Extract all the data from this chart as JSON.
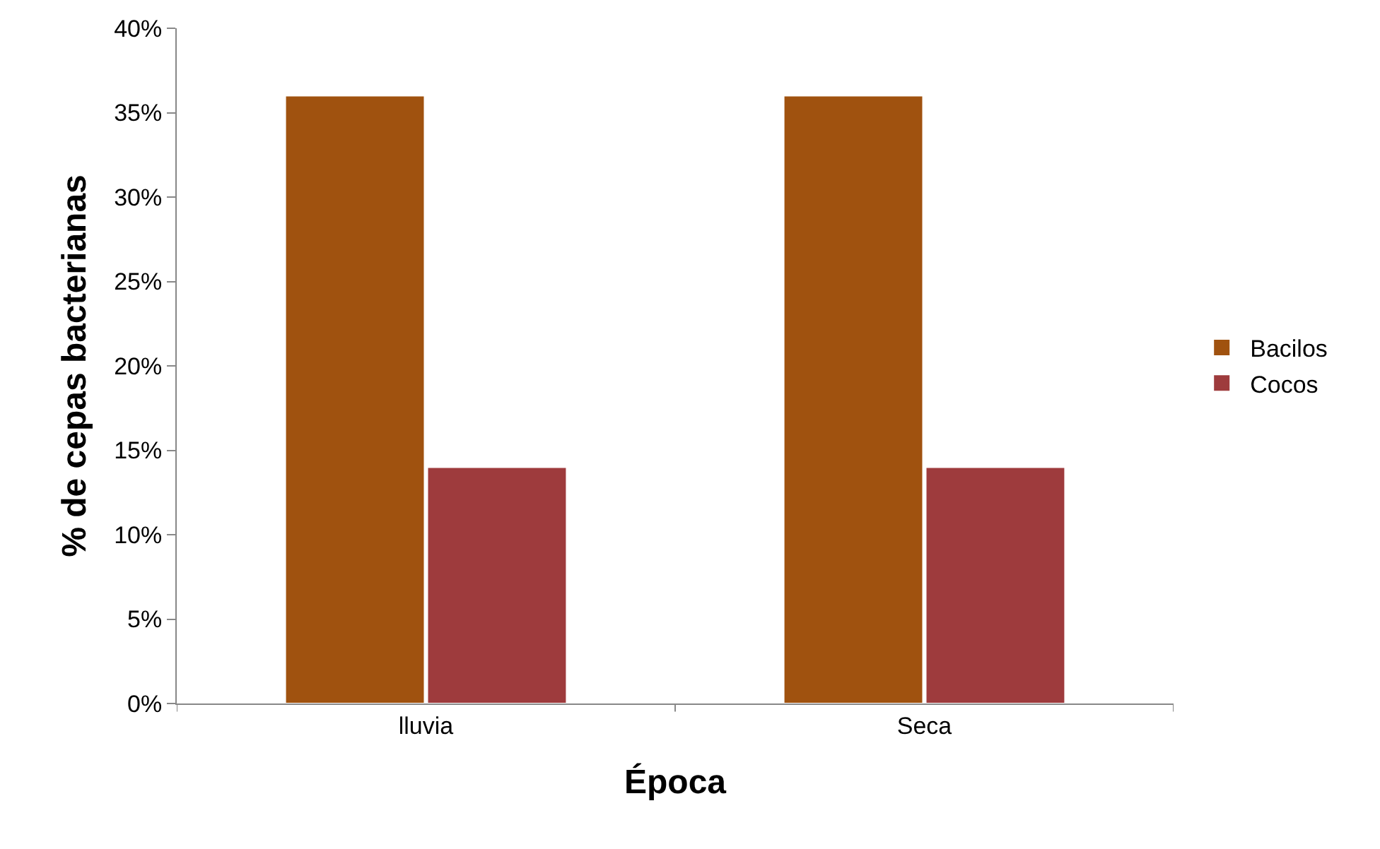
{
  "chart_data": {
    "type": "bar",
    "xlabel": "Época",
    "ylabel": "% de cepas bacterianas",
    "categories": [
      "lluvia",
      "Seca"
    ],
    "series": [
      {
        "name": "Bacilos",
        "color": "#a0520f",
        "values": [
          36,
          36
        ]
      },
      {
        "name": "Cocos",
        "color": "#9e3b3d",
        "values": [
          14,
          14
        ]
      }
    ],
    "ylim": [
      0,
      40
    ],
    "yticks": [
      {
        "value": 0,
        "label": "0%"
      },
      {
        "value": 5,
        "label": "5%"
      },
      {
        "value": 10,
        "label": "10%"
      },
      {
        "value": 15,
        "label": "15%"
      },
      {
        "value": 20,
        "label": "20%"
      },
      {
        "value": 25,
        "label": "25%"
      },
      {
        "value": 30,
        "label": "30%"
      },
      {
        "value": 35,
        "label": "35%"
      },
      {
        "value": 40,
        "label": "40%"
      }
    ],
    "grid": false,
    "legend": "right"
  }
}
